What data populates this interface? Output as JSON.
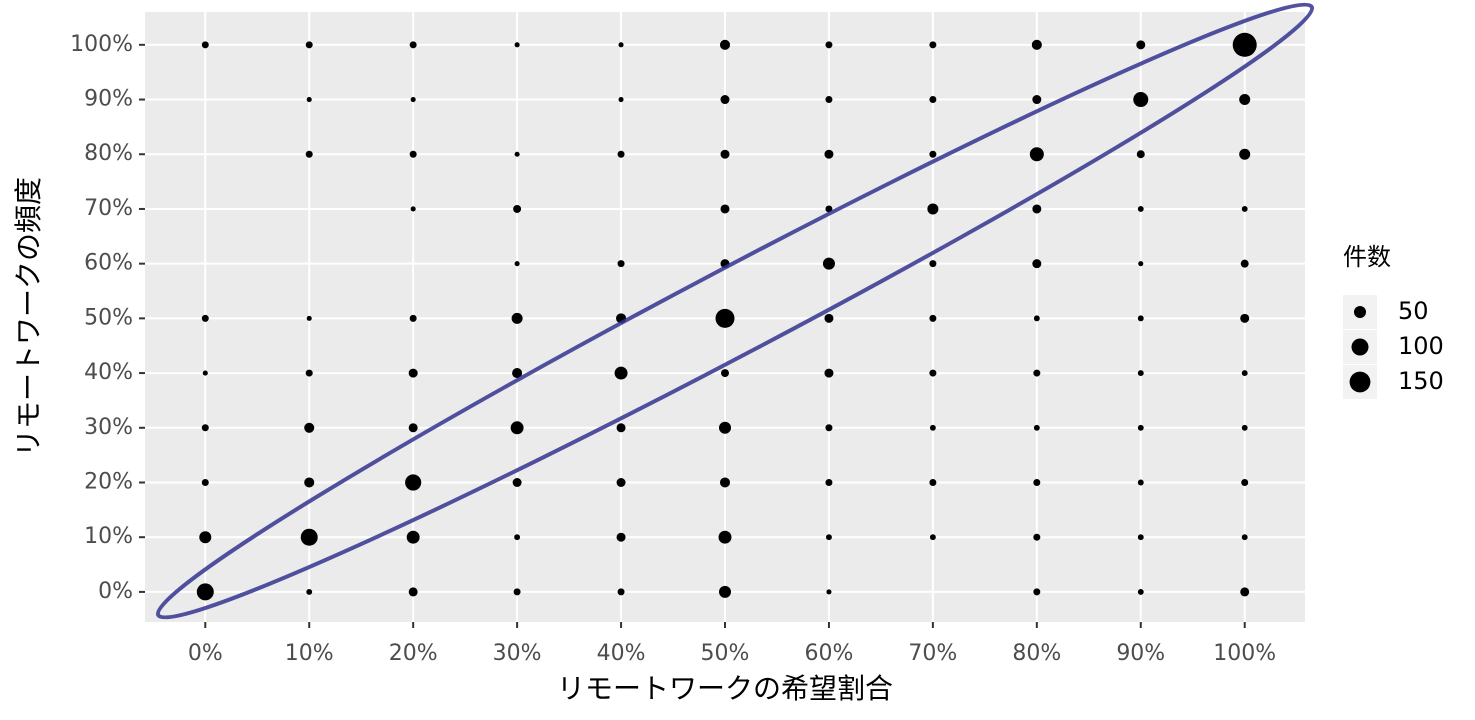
{
  "chart_data": {
    "type": "scatter",
    "x_label": "リモートワークの希望割合",
    "y_label": "リモートワークの頻度",
    "x": [
      0,
      0,
      0,
      0,
      0,
      0,
      0,
      10,
      10,
      10,
      10,
      10,
      10,
      10,
      10,
      10,
      20,
      20,
      20,
      20,
      20,
      20,
      20,
      20,
      20,
      20,
      30,
      30,
      30,
      30,
      30,
      30,
      30,
      30,
      30,
      30,
      40,
      40,
      40,
      40,
      40,
      40,
      40,
      40,
      40,
      40,
      50,
      50,
      50,
      50,
      50,
      50,
      50,
      50,
      50,
      50,
      50,
      60,
      60,
      60,
      60,
      60,
      60,
      60,
      60,
      60,
      60,
      60,
      70,
      70,
      70,
      70,
      70,
      70,
      70,
      70,
      70,
      70,
      80,
      80,
      80,
      80,
      80,
      80,
      80,
      80,
      80,
      80,
      80,
      90,
      90,
      90,
      90,
      90,
      90,
      90,
      90,
      90,
      90,
      90,
      100,
      100,
      100,
      100,
      100,
      100,
      100,
      100,
      100,
      100,
      100
    ],
    "y": [
      0,
      10,
      20,
      30,
      40,
      50,
      100,
      0,
      10,
      20,
      30,
      40,
      50,
      80,
      90,
      100,
      0,
      10,
      20,
      30,
      40,
      50,
      70,
      80,
      90,
      100,
      0,
      10,
      20,
      30,
      40,
      50,
      60,
      70,
      80,
      100,
      0,
      10,
      20,
      30,
      40,
      50,
      60,
      80,
      90,
      100,
      0,
      10,
      20,
      30,
      40,
      50,
      60,
      70,
      80,
      90,
      100,
      0,
      10,
      20,
      30,
      40,
      50,
      60,
      70,
      80,
      90,
      100,
      10,
      20,
      30,
      40,
      50,
      60,
      70,
      80,
      90,
      100,
      0,
      10,
      20,
      30,
      40,
      50,
      60,
      70,
      80,
      90,
      100,
      0,
      10,
      20,
      30,
      40,
      50,
      60,
      70,
      80,
      90,
      100,
      0,
      10,
      20,
      30,
      40,
      50,
      60,
      70,
      80,
      90,
      100
    ],
    "sizes": [
      100,
      50,
      17,
      17,
      9,
      17,
      17,
      12,
      100,
      35,
      35,
      17,
      9,
      17,
      9,
      17,
      28,
      58,
      90,
      28,
      28,
      17,
      9,
      17,
      9,
      17,
      17,
      12,
      28,
      58,
      35,
      42,
      9,
      22,
      9,
      9,
      17,
      28,
      28,
      28,
      58,
      35,
      17,
      17,
      9,
      9,
      50,
      58,
      35,
      50,
      22,
      125,
      28,
      28,
      28,
      28,
      35,
      9,
      12,
      17,
      17,
      28,
      28,
      50,
      17,
      28,
      17,
      17,
      12,
      17,
      12,
      17,
      17,
      17,
      42,
      17,
      17,
      17,
      17,
      17,
      17,
      12,
      17,
      12,
      28,
      28,
      68,
      28,
      35,
      12,
      12,
      12,
      12,
      12,
      12,
      9,
      12,
      22,
      78,
      28,
      28,
      12,
      17,
      12,
      12,
      28,
      22,
      12,
      42,
      42,
      200
    ],
    "color": "#000000",
    "xlim": [
      -5.8,
      105.8
    ],
    "ylim": [
      -5.5,
      106
    ],
    "xticks": [
      {
        "value": 0,
        "label": "0%"
      },
      {
        "value": 10,
        "label": "10%"
      },
      {
        "value": 20,
        "label": "20%"
      },
      {
        "value": 30,
        "label": "30%"
      },
      {
        "value": 40,
        "label": "40%"
      },
      {
        "value": 50,
        "label": "50%"
      },
      {
        "value": 60,
        "label": "60%"
      },
      {
        "value": 70,
        "label": "70%"
      },
      {
        "value": 80,
        "label": "80%"
      },
      {
        "value": 90,
        "label": "90%"
      },
      {
        "value": 100,
        "label": "100%"
      }
    ],
    "yticks": [
      {
        "value": 0,
        "label": "0%"
      },
      {
        "value": 10,
        "label": "10%"
      },
      {
        "value": 20,
        "label": "20%"
      },
      {
        "value": 30,
        "label": "30%"
      },
      {
        "value": 40,
        "label": "40%"
      },
      {
        "value": 50,
        "label": "50%"
      },
      {
        "value": 60,
        "label": "60%"
      },
      {
        "value": 70,
        "label": "70%"
      },
      {
        "value": 80,
        "label": "80%"
      },
      {
        "value": 90,
        "label": "90%"
      },
      {
        "value": 100,
        "label": "100%"
      }
    ],
    "grid": true,
    "size_legend": {
      "title": "件数",
      "values": [
        50,
        100,
        150
      ]
    }
  }
}
